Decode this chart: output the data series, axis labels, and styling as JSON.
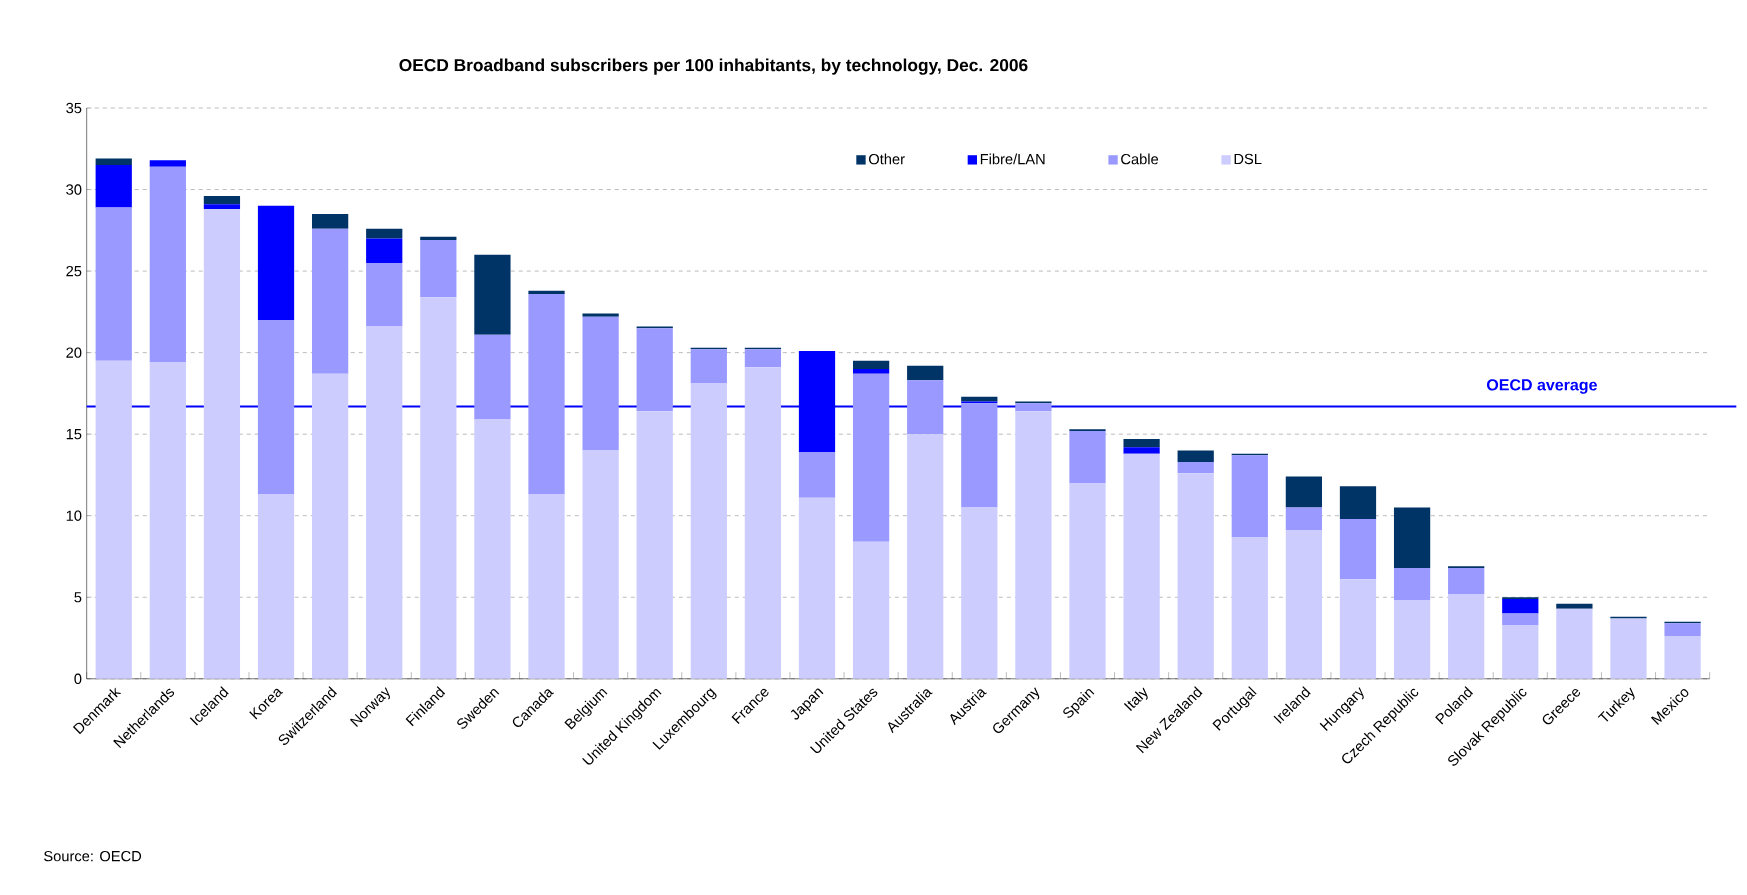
{
  "chart_data": {
    "type": "bar",
    "title": "OECD Broadband subscribers per 100 inhabitants, by technology, Dec. 2006",
    "categories": [
      "Denmark",
      "Netherlands",
      "Iceland",
      "Korea",
      "Switzerland",
      "Norway",
      "Finland",
      "Sweden",
      "Canada",
      "Belgium",
      "United Kingdom",
      "Luxembourg",
      "France",
      "Japan",
      "United States",
      "Australia",
      "Austria",
      "Germany",
      "Spain",
      "Italy",
      "New Zealand",
      "Portugal",
      "Ireland",
      "Hungary",
      "Czech Republic",
      "Poland",
      "Slovak Republic",
      "Greece",
      "Turkey",
      "Mexico"
    ],
    "stacked": true,
    "series": [
      {
        "name": "DSL",
        "color": "#ccccff",
        "values": [
          19.5,
          19.4,
          28.8,
          11.3,
          18.7,
          21.6,
          23.4,
          15.9,
          11.3,
          14.0,
          16.4,
          18.1,
          19.1,
          11.1,
          8.4,
          15.0,
          10.5,
          16.4,
          12.0,
          13.8,
          12.6,
          8.7,
          9.1,
          6.1,
          4.8,
          5.2,
          3.3,
          4.3,
          3.7,
          2.6
        ]
      },
      {
        "name": "Cable",
        "color": "#9999ff",
        "values": [
          9.4,
          12.0,
          0,
          10.7,
          8.9,
          3.9,
          3.5,
          5.2,
          12.3,
          8.2,
          5.1,
          2.1,
          1.1,
          2.8,
          10.3,
          3.3,
          6.4,
          0.5,
          3.2,
          0,
          0.7,
          5.0,
          1.4,
          3.7,
          2.0,
          1.6,
          0.7,
          0,
          0,
          0.8
        ]
      },
      {
        "name": "Fibre/LAN",
        "color": "#0000ff",
        "values": [
          2.6,
          0.4,
          0.3,
          7.0,
          0,
          1.5,
          0,
          0,
          0,
          0,
          0,
          0,
          0,
          6.2,
          0.3,
          0,
          0.1,
          0,
          0,
          0.4,
          0,
          0,
          0,
          0,
          0,
          0,
          0.9,
          0,
          0,
          0
        ]
      },
      {
        "name": "Other",
        "color": "#003366",
        "values": [
          0.4,
          0,
          0.5,
          0,
          0.9,
          0.6,
          0.2,
          4.9,
          0.2,
          0.2,
          0.1,
          0.1,
          0.1,
          0,
          0.5,
          0.9,
          0.3,
          0.1,
          0.1,
          0.5,
          0.7,
          0.1,
          1.9,
          2.0,
          3.7,
          0.1,
          0.1,
          0.3,
          0.1,
          0.1
        ]
      }
    ],
    "ylim": [
      0,
      35
    ],
    "yticks": [
      0,
      5,
      10,
      15,
      20,
      25,
      30,
      35
    ],
    "grid": "y",
    "legend": "top",
    "ref_lines": [
      {
        "axis": "y",
        "value": 16.7,
        "label": "OECD average",
        "color": "#0000ff"
      }
    ],
    "annotations": [
      "Source: OECD"
    ]
  }
}
